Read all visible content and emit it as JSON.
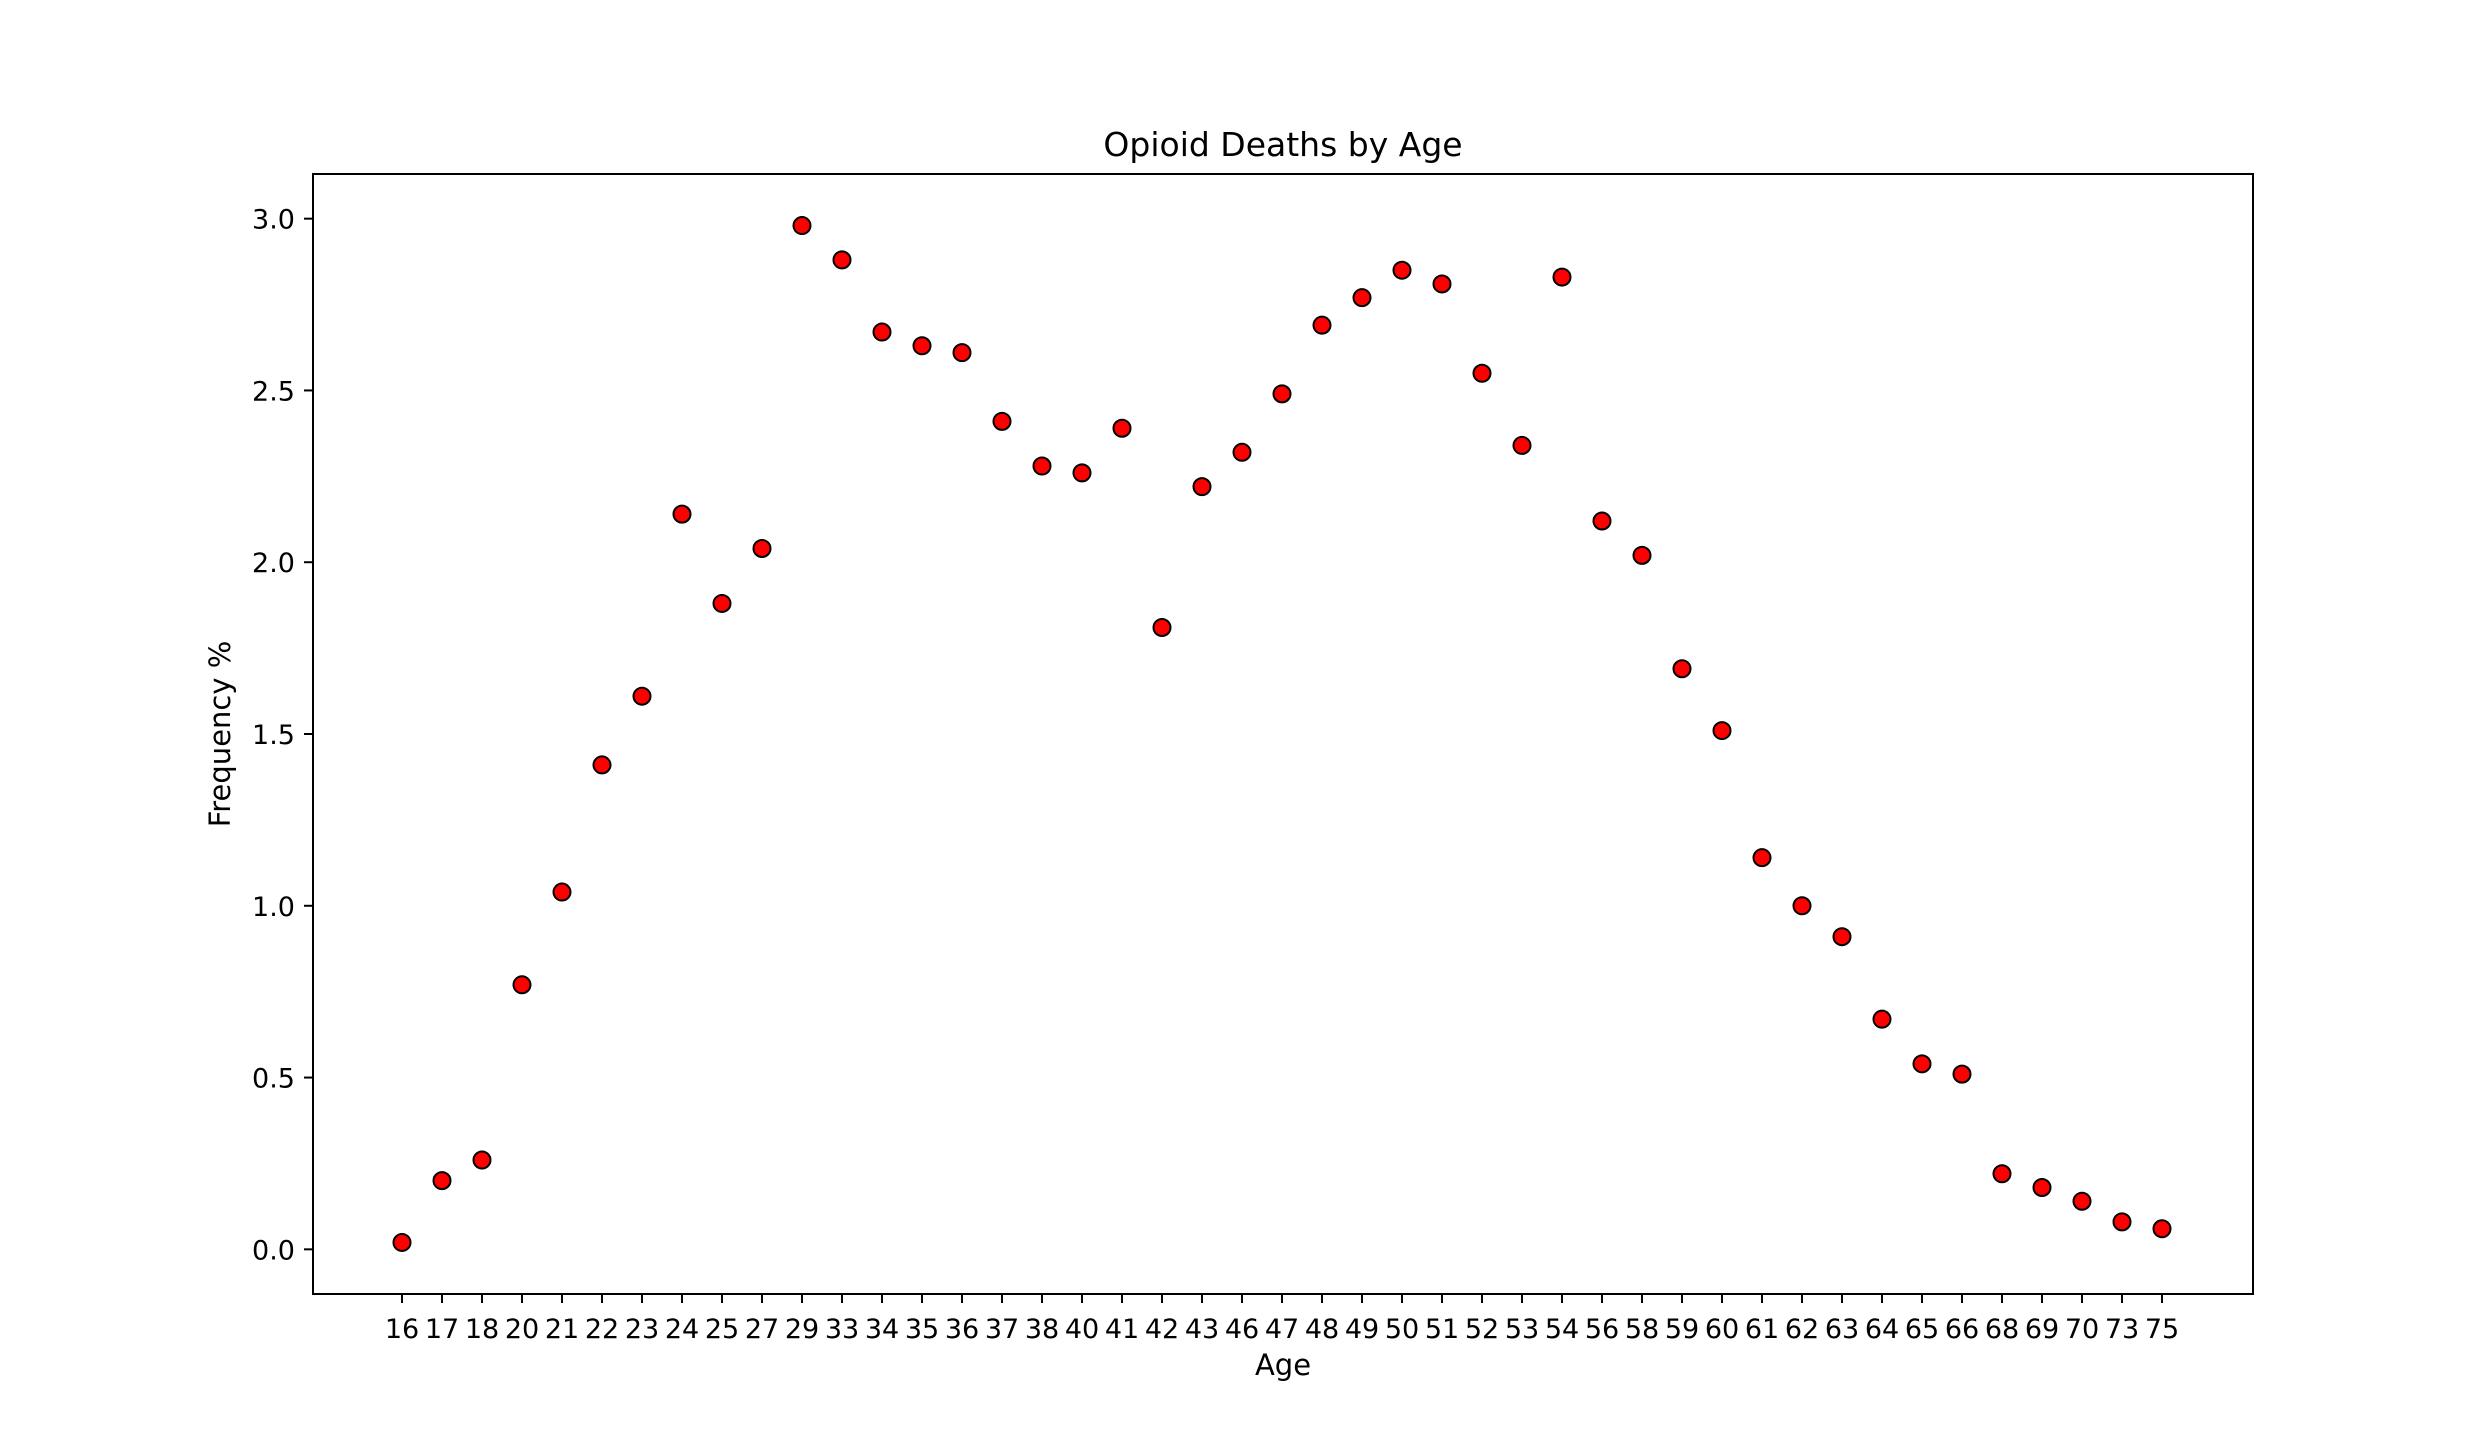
{
  "chart_data": {
    "type": "scatter",
    "title": "Opioid Deaths by Age",
    "xlabel": "Age",
    "ylabel": "Frequency %",
    "ylim": [
      -0.13,
      3.13
    ],
    "yticks": [
      "0.0",
      "0.5",
      "1.0",
      "1.5",
      "2.0",
      "2.5",
      "3.0"
    ],
    "grid": false,
    "legend": "none",
    "marker_color": "#ff0000",
    "marker_edge_color": "#000000",
    "categories": [
      "16",
      "17",
      "18",
      "20",
      "21",
      "22",
      "23",
      "24",
      "25",
      "27",
      "29",
      "33",
      "34",
      "35",
      "36",
      "37",
      "38",
      "40",
      "41",
      "42",
      "43",
      "46",
      "47",
      "48",
      "49",
      "50",
      "51",
      "52",
      "53",
      "54",
      "56",
      "58",
      "59",
      "60",
      "61",
      "62",
      "63",
      "64",
      "65",
      "66",
      "68",
      "69",
      "70",
      "73",
      "75"
    ],
    "values": [
      0.02,
      0.2,
      0.26,
      0.77,
      1.04,
      1.41,
      1.61,
      2.14,
      1.88,
      2.04,
      2.98,
      2.88,
      2.67,
      2.63,
      2.61,
      2.41,
      2.28,
      2.26,
      2.39,
      1.81,
      2.22,
      2.32,
      2.49,
      2.69,
      2.77,
      2.85,
      2.81,
      2.55,
      2.34,
      2.83,
      2.12,
      2.02,
      1.69,
      1.51,
      1.14,
      1.0,
      0.91,
      0.67,
      0.54,
      0.51,
      0.22,
      0.18,
      0.14,
      0.08,
      0.06
    ]
  }
}
